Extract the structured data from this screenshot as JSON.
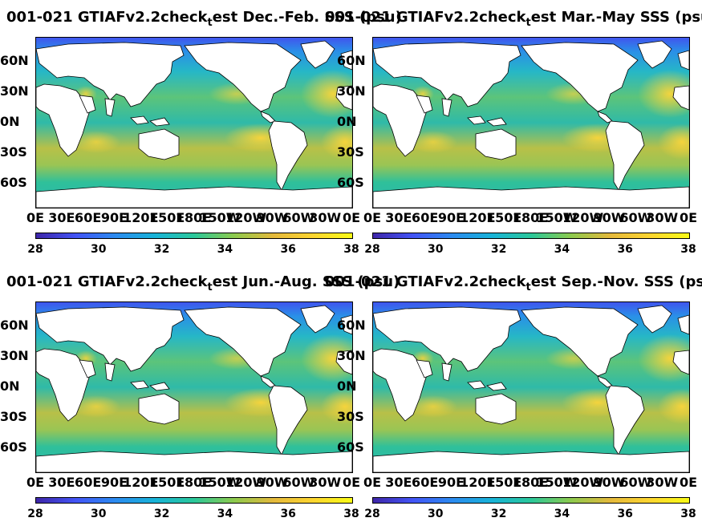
{
  "panels": [
    {
      "title_pre": "001-021 GTIAFv2.2check",
      "title_sub": "t",
      "title_post": "est Dec.-Feb. SSS (psu)"
    },
    {
      "title_pre": "001-021 GTIAFv2.2check",
      "title_sub": "t",
      "title_post": "est Mar.-May SSS (psu)"
    },
    {
      "title_pre": "001-021 GTIAFv2.2check",
      "title_sub": "t",
      "title_post": "est Jun.-Aug. SSS (psu)"
    },
    {
      "title_pre": "001-021 GTIAFv2.2check",
      "title_sub": "t",
      "title_post": "est Sep.-Nov. SSS (psu)"
    }
  ],
  "lat_labels": [
    "60N",
    "30N",
    "0N",
    "30S",
    "60S"
  ],
  "lon_labels": [
    "0E",
    "30E",
    "60E",
    "90E",
    "120E",
    "150E",
    "180E",
    "150W",
    "120W",
    "90W",
    "60W",
    "30W",
    "0E"
  ],
  "colorbar": {
    "ticks": [
      "28",
      "30",
      "32",
      "34",
      "36",
      "38"
    ],
    "min": 28,
    "max": 38
  },
  "colors": {
    "fresh": "#3e26a8",
    "mid": "#18b3d8",
    "salty": "#f9fb15",
    "land": "#ffffff"
  }
}
